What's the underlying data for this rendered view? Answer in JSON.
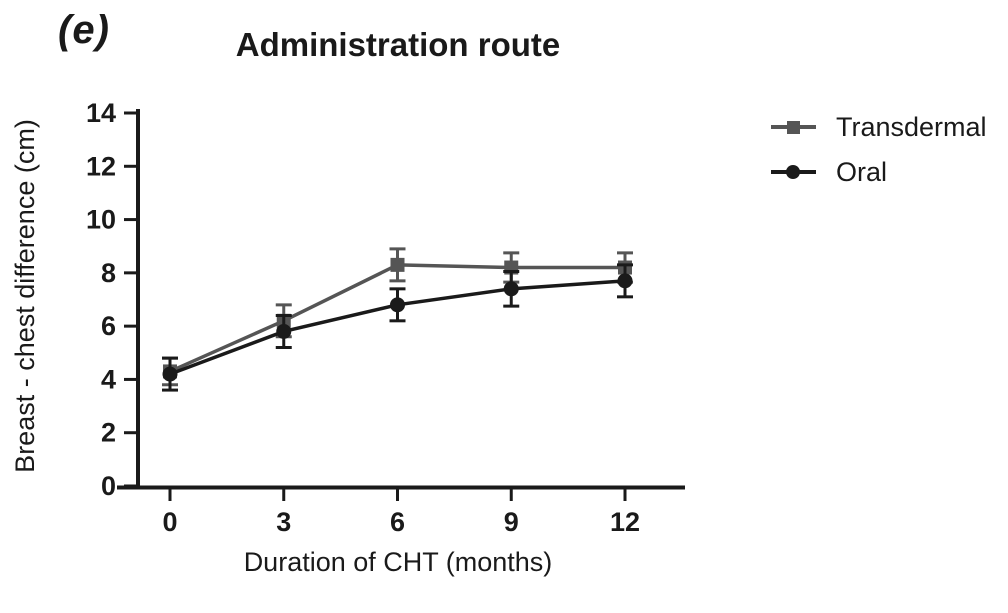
{
  "panel_label": "(e)",
  "chart_data": {
    "type": "line",
    "title": "Administration route",
    "x": [
      0,
      3,
      6,
      9,
      12
    ],
    "xlabel": "Duration of CHT (months)",
    "ylabel": "Breast - chest difference (cm)",
    "xlim": [
      0,
      13.5
    ],
    "ylim": [
      0,
      14
    ],
    "xticks": [
      0,
      3,
      6,
      9,
      12
    ],
    "yticks": [
      0,
      2,
      4,
      6,
      8,
      10,
      12,
      14
    ],
    "grid": false,
    "legend_position": "right",
    "axis_color": "#1a1a1a",
    "series": [
      {
        "name": "Transdermal",
        "marker": "square",
        "color": "#555555",
        "values": [
          4.3,
          6.2,
          8.3,
          8.2,
          8.2
        ],
        "errors": [
          0.5,
          0.6,
          0.6,
          0.55,
          0.55
        ]
      },
      {
        "name": "Oral",
        "marker": "circle",
        "color": "#1a1a1a",
        "values": [
          4.2,
          5.8,
          6.8,
          7.4,
          7.7
        ],
        "errors": [
          0.6,
          0.6,
          0.6,
          0.65,
          0.6
        ]
      }
    ]
  }
}
